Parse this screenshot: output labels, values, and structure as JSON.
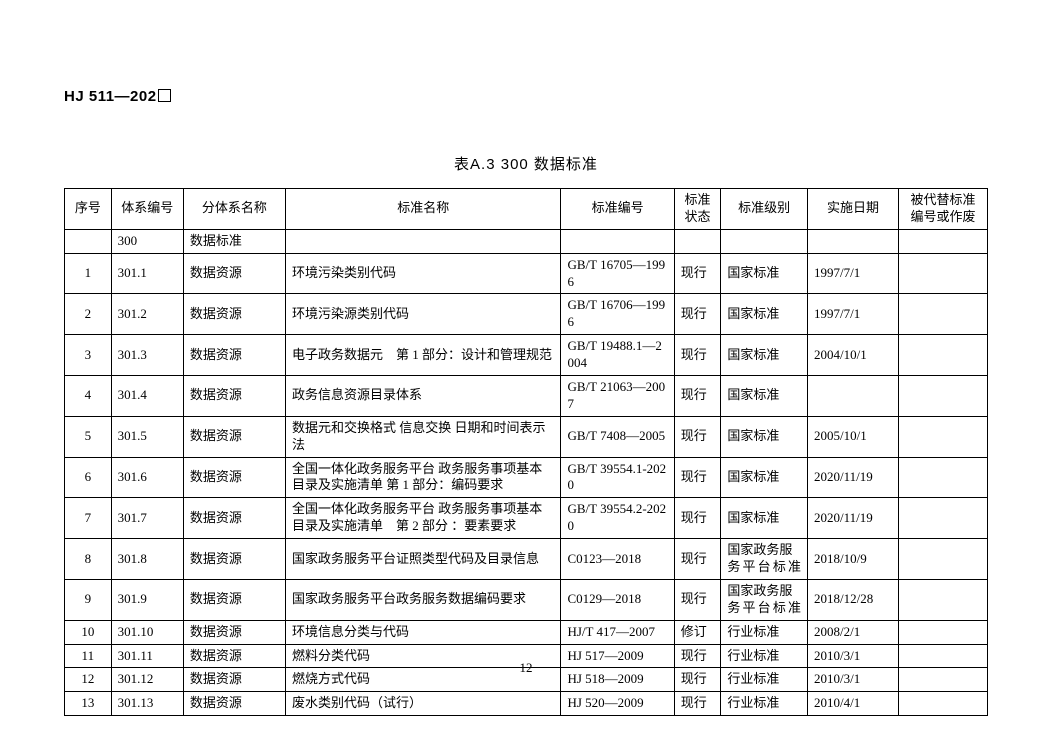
{
  "doc_code_prefix": "HJ",
  "doc_code_rest": " 511—202",
  "caption": "表A.3 300 数据标准",
  "page_number": "12",
  "headers": {
    "seq": "序号",
    "sys": "体系编号",
    "sub": "分体系名称",
    "name": "标准名称",
    "code": "标准编号",
    "status": "标准状态",
    "level": "标准级别",
    "date": "实施日期",
    "replaced": "被代替标准编号或作废"
  },
  "category_row": {
    "sys": "300",
    "sub": "数据标准"
  },
  "rows": [
    {
      "seq": "1",
      "sys": "301.1",
      "sub": "数据资源",
      "name": "环境污染类别代码",
      "code": "GB/T 16705—1996",
      "status": "现行",
      "level": "国家标准",
      "level_justify": false,
      "date": "1997/7/1",
      "replaced": ""
    },
    {
      "seq": "2",
      "sys": "301.2",
      "sub": "数据资源",
      "name": "环境污染源类别代码",
      "code": "GB/T 16706—1996",
      "status": "现行",
      "level": "国家标准",
      "level_justify": false,
      "date": "1997/7/1",
      "replaced": ""
    },
    {
      "seq": "3",
      "sys": "301.3",
      "sub": "数据资源",
      "name": "电子政务数据元　第 1 部分：设计和管理规范",
      "code": "GB/T 19488.1—2004",
      "status": "现行",
      "level": "国家标准",
      "level_justify": false,
      "date": "2004/10/1",
      "replaced": ""
    },
    {
      "seq": "4",
      "sys": "301.4",
      "sub": "数据资源",
      "name": "政务信息资源目录体系",
      "code": "GB/T 21063—2007",
      "status": "现行",
      "level": "国家标准",
      "level_justify": false,
      "date": "",
      "replaced": ""
    },
    {
      "seq": "5",
      "sys": "301.5",
      "sub": "数据资源",
      "name": "数据元和交换格式 信息交换 日期和时间表示法",
      "code": "GB/T 7408—2005",
      "status": "现行",
      "level": "国家标准",
      "level_justify": false,
      "date": "2005/10/1",
      "replaced": ""
    },
    {
      "seq": "6",
      "sys": "301.6",
      "sub": "数据资源",
      "name": "全国一体化政务服务平台 政务服务事项基本目录及实施清单 第 1 部分：编码要求",
      "code": "GB/T 39554.1-2020",
      "status": "现行",
      "level": "国家标准",
      "level_justify": false,
      "date": "2020/11/19",
      "replaced": ""
    },
    {
      "seq": "7",
      "sys": "301.7",
      "sub": "数据资源",
      "name": "全国一体化政务服务平台 政务服务事项基本目录及实施清单　第 2 部分 ：要素要求",
      "code": "GB/T 39554.2-2020",
      "status": "现行",
      "level": "国家标准",
      "level_justify": false,
      "date": "2020/11/19",
      "replaced": ""
    },
    {
      "seq": "8",
      "sys": "301.8",
      "sub": "数据资源",
      "name": "国家政务服务平台证照类型代码及目录信息",
      "code": "C0123—2018",
      "status": "现行",
      "level": "国家政务服务平台标准",
      "level_justify": true,
      "date": "2018/10/9",
      "replaced": ""
    },
    {
      "seq": "9",
      "sys": "301.9",
      "sub": "数据资源",
      "name": "国家政务服务平台政务服务数据编码要求",
      "code": "C0129—2018",
      "status": "现行",
      "level": "国家政务服务平台标准",
      "level_justify": true,
      "date": "2018/12/28",
      "replaced": ""
    },
    {
      "seq": "10",
      "sys": "301.10",
      "sub": "数据资源",
      "name": "环境信息分类与代码",
      "code": "HJ/T 417—2007",
      "status": "修订",
      "level": "行业标准",
      "level_justify": false,
      "date": "2008/2/1",
      "replaced": ""
    },
    {
      "seq": "11",
      "sys": "301.11",
      "sub": "数据资源",
      "name": "燃料分类代码",
      "code": "HJ 517—2009",
      "status": "现行",
      "level": "行业标准",
      "level_justify": false,
      "date": "2010/3/1",
      "replaced": ""
    },
    {
      "seq": "12",
      "sys": "301.12",
      "sub": "数据资源",
      "name": "燃烧方式代码",
      "code": "HJ 518—2009",
      "status": "现行",
      "level": "行业标准",
      "level_justify": false,
      "date": "2010/3/1",
      "replaced": ""
    },
    {
      "seq": "13",
      "sys": "301.13",
      "sub": "数据资源",
      "name": "废水类别代码（试行）",
      "code": "HJ 520—2009",
      "status": "现行",
      "level": "行业标准",
      "level_justify": false,
      "date": "2010/4/1",
      "replaced": ""
    }
  ],
  "colors": {
    "text": "#000000",
    "border": "#000000",
    "background": "#ffffff"
  },
  "font": {
    "body_family": "SimSun",
    "header_family": "SimHei",
    "cell_size_pt": 10,
    "caption_size_pt": 11
  }
}
